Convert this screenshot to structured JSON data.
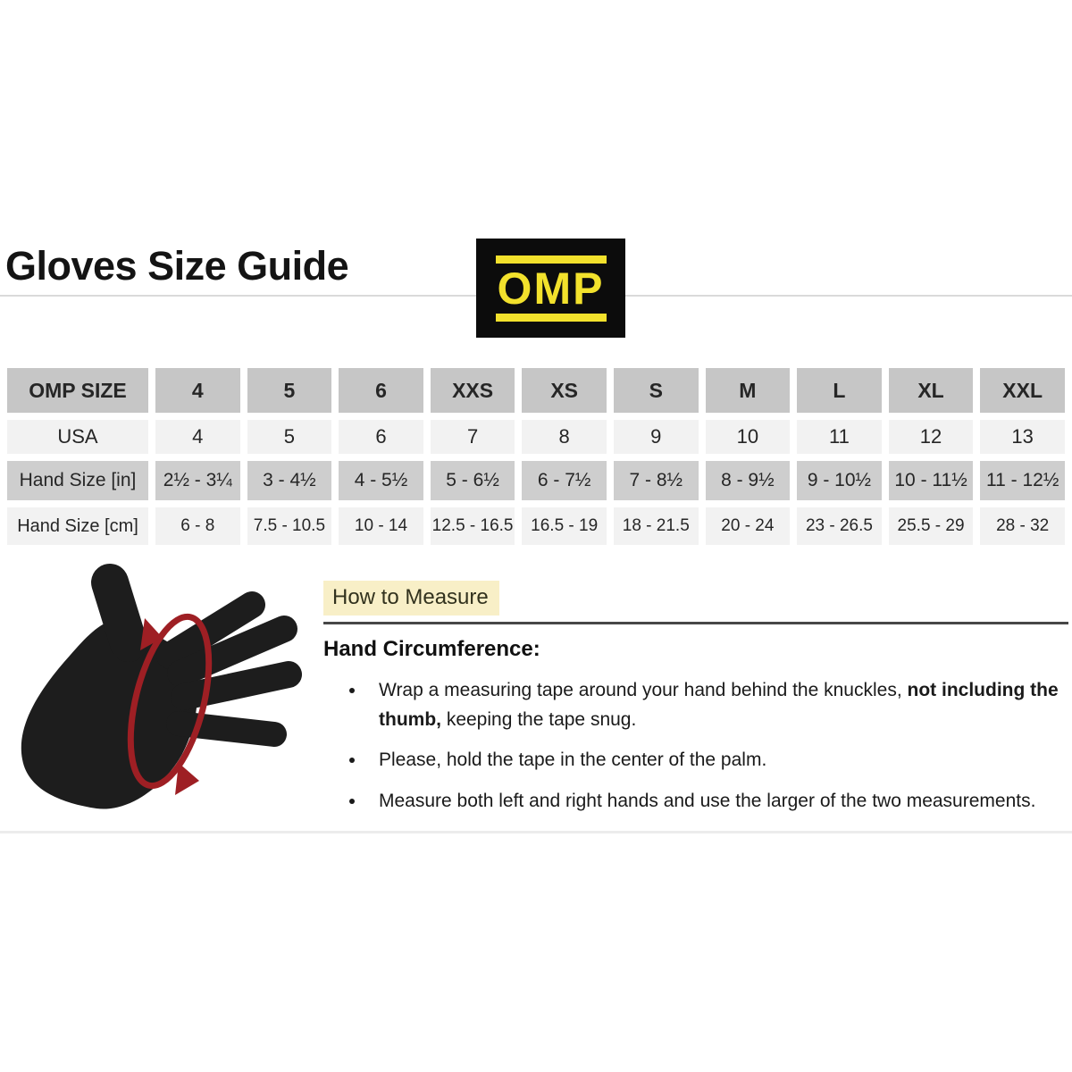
{
  "page": {
    "title": "Gloves Size Guide"
  },
  "logo": {
    "text": "OMP",
    "background": "#0c0c0c",
    "yellow": "#f2e12c"
  },
  "size_table": {
    "columns": [
      "OMP SIZE",
      "4",
      "5",
      "6",
      "XXS",
      "XS",
      "S",
      "M",
      "L",
      "XL",
      "XXL"
    ],
    "rows": [
      {
        "label": "USA",
        "values": [
          "4",
          "5",
          "6",
          "7",
          "8",
          "9",
          "10",
          "11",
          "12",
          "13"
        ]
      },
      {
        "label": "Hand Size [in]",
        "values": [
          "2½ - 3¼",
          "3 - 4½",
          "4 - 5½",
          "5 - 6½",
          "6 - 7½",
          "7 - 8½",
          "8 - 9½",
          "9 - 10½",
          "10 - 11½",
          "11 - 12½"
        ]
      },
      {
        "label": "Hand Size [cm]",
        "values": [
          "6 - 8",
          "7.5 - 10.5",
          "10 - 14",
          "12.5 - 16.5",
          "16.5 - 19",
          "18 - 21.5",
          "20 - 24",
          "23 - 26.5",
          "25.5 - 29",
          "28 - 32"
        ]
      }
    ]
  },
  "measure": {
    "heading": "How to Measure",
    "subheading": "Hand Circumference:",
    "bullets": [
      {
        "pre": "Wrap a measuring tape around your hand behind the knuckles, ",
        "bold": "not including the thumb,",
        "post": " keeping the tape snug."
      },
      {
        "pre": "Please, hold the tape in the center of the palm.",
        "bold": "",
        "post": ""
      },
      {
        "pre": "Measure both left and right hands and use the larger of the two measurements.",
        "bold": "",
        "post": ""
      }
    ]
  },
  "illustration": {
    "name": "hand-circumference-illustration",
    "hand_color": "#1d1d1d",
    "tape_arrow_color": "#9e1f24"
  },
  "colors": {
    "table_header_gray": "#c6c6c6",
    "table_shade_gray": "#cecece",
    "table_light_gray": "#f2f2f2",
    "heading_highlight": "#f8efc7",
    "rule_dark": "#474747",
    "rule_light": "#dadada"
  }
}
